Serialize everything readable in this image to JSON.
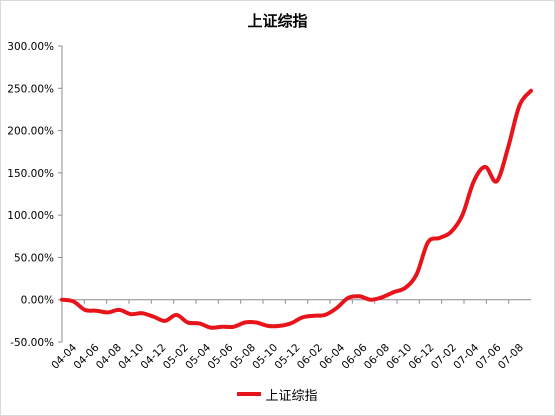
{
  "chart_data": {
    "type": "line",
    "title": "上证综指",
    "xlabel": "",
    "ylabel": "",
    "ylim": [
      -50,
      300
    ],
    "yticks": [
      300,
      250,
      200,
      150,
      100,
      50,
      0,
      -50
    ],
    "ytick_labels": [
      "300.00%",
      "250.00%",
      "200.00%",
      "150.00%",
      "100.00%",
      "50.00%",
      "0.00%",
      "-50.00%"
    ],
    "x_tick_labels": [
      "04-04",
      "04-06",
      "04-08",
      "04-10",
      "04-12",
      "05-02",
      "05-04",
      "05-06",
      "05-08",
      "05-10",
      "05-12",
      "06-02",
      "06-04",
      "06-06",
      "06-08",
      "06-10",
      "06-12",
      "07-02",
      "07-04",
      "07-06",
      "07-08"
    ],
    "grid": false,
    "legend_position": "bottom",
    "color": "#e8141b",
    "series": [
      {
        "name": "上证综指",
        "points": [
          [
            0,
            0
          ],
          [
            1,
            -2
          ],
          [
            2,
            -12
          ],
          [
            3,
            -13
          ],
          [
            4,
            -15
          ],
          [
            5,
            -12
          ],
          [
            6,
            -17
          ],
          [
            7,
            -16
          ],
          [
            8,
            -20
          ],
          [
            9,
            -25
          ],
          [
            10,
            -18
          ],
          [
            11,
            -27
          ],
          [
            12,
            -28
          ],
          [
            13,
            -33
          ],
          [
            14,
            -32
          ],
          [
            15,
            -32
          ],
          [
            16,
            -27
          ],
          [
            17,
            -27
          ],
          [
            18,
            -31
          ],
          [
            19,
            -31
          ],
          [
            20,
            -28
          ],
          [
            21,
            -21
          ],
          [
            22,
            -19
          ],
          [
            23,
            -18
          ],
          [
            24,
            -10
          ],
          [
            25,
            2
          ],
          [
            26,
            4
          ],
          [
            27,
            0
          ],
          [
            28,
            3
          ],
          [
            29,
            9
          ],
          [
            30,
            14
          ],
          [
            31,
            30
          ],
          [
            32,
            68
          ],
          [
            33,
            73
          ],
          [
            34,
            80
          ],
          [
            35,
            100
          ],
          [
            36,
            140
          ],
          [
            37,
            157
          ],
          [
            38,
            140
          ],
          [
            39,
            180
          ],
          [
            40,
            230
          ],
          [
            41,
            247
          ]
        ]
      }
    ]
  }
}
